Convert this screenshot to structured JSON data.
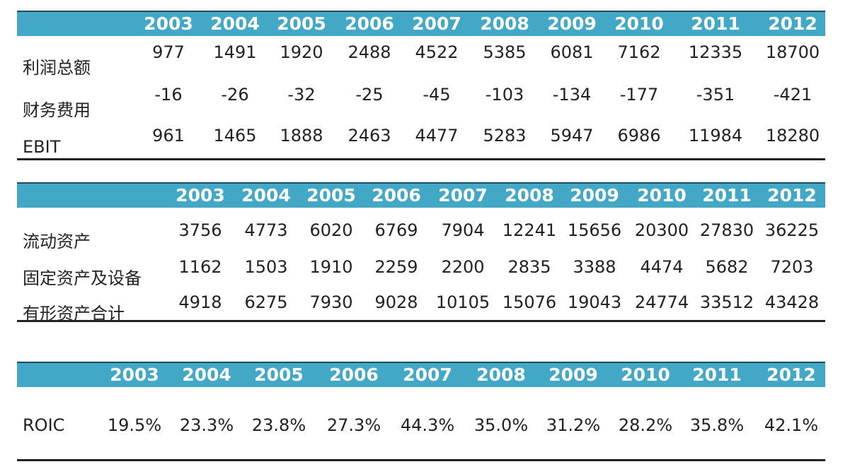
{
  "tables": [
    {
      "years": [
        "2003",
        "2004",
        "2005",
        "2006",
        "2007",
        "2008",
        "2009",
        "2010",
        "2011",
        "2012"
      ],
      "rows": [
        {
          "label": "利润总额",
          "values": [
            "977",
            "1491",
            "1920",
            "2488",
            "4522",
            "5385",
            "6081",
            "7162",
            "12335",
            "18700"
          ]
        },
        {
          "label": "财务费用",
          "values": [
            "-16",
            "-26",
            "-32",
            "-25",
            "-45",
            "-103",
            "-134",
            "-177",
            "-351",
            "-421"
          ]
        },
        {
          "label": "EBIT",
          "values": [
            "961",
            "1465",
            "1888",
            "2463",
            "4477",
            "5283",
            "5947",
            "6986",
            "11984",
            "18280"
          ]
        }
      ]
    },
    {
      "years": [
        "2003",
        "2004",
        "2005",
        "2006",
        "2007",
        "2008",
        "2009",
        "2010",
        "2011",
        "2012"
      ],
      "rows": [
        {
          "label": "流动资产",
          "values": [
            "3756",
            "4773",
            "6020",
            "6769",
            "7904",
            "12241",
            "15656",
            "20300",
            "27830",
            "36225"
          ]
        },
        {
          "label": "固定资产及设备",
          "values": [
            "1162",
            "1503",
            "1910",
            "2259",
            "2200",
            "2835",
            "3388",
            "4474",
            "5682",
            "7203"
          ]
        },
        {
          "label": "有形资产合计",
          "values": [
            "4918",
            "6275",
            "7930",
            "9028",
            "10105",
            "15076",
            "19043",
            "24774",
            "33512",
            "43428"
          ]
        }
      ]
    },
    {
      "years": [
        "2003",
        "2004",
        "2005",
        "2006",
        "2007",
        "2008",
        "2009",
        "2010",
        "2011",
        "2012"
      ],
      "rows": [
        {
          "label": "ROIC",
          "values": [
            "19.5%",
            "23.3%",
            "23.8%",
            "27.3%",
            "44.3%",
            "35.0%",
            "31.2%",
            "28.2%",
            "35.8%",
            "42.1%"
          ]
        }
      ]
    }
  ],
  "colors": {
    "header_bg": "#43a7c6",
    "header_text": "#ffffff",
    "rule": "#222222"
  }
}
